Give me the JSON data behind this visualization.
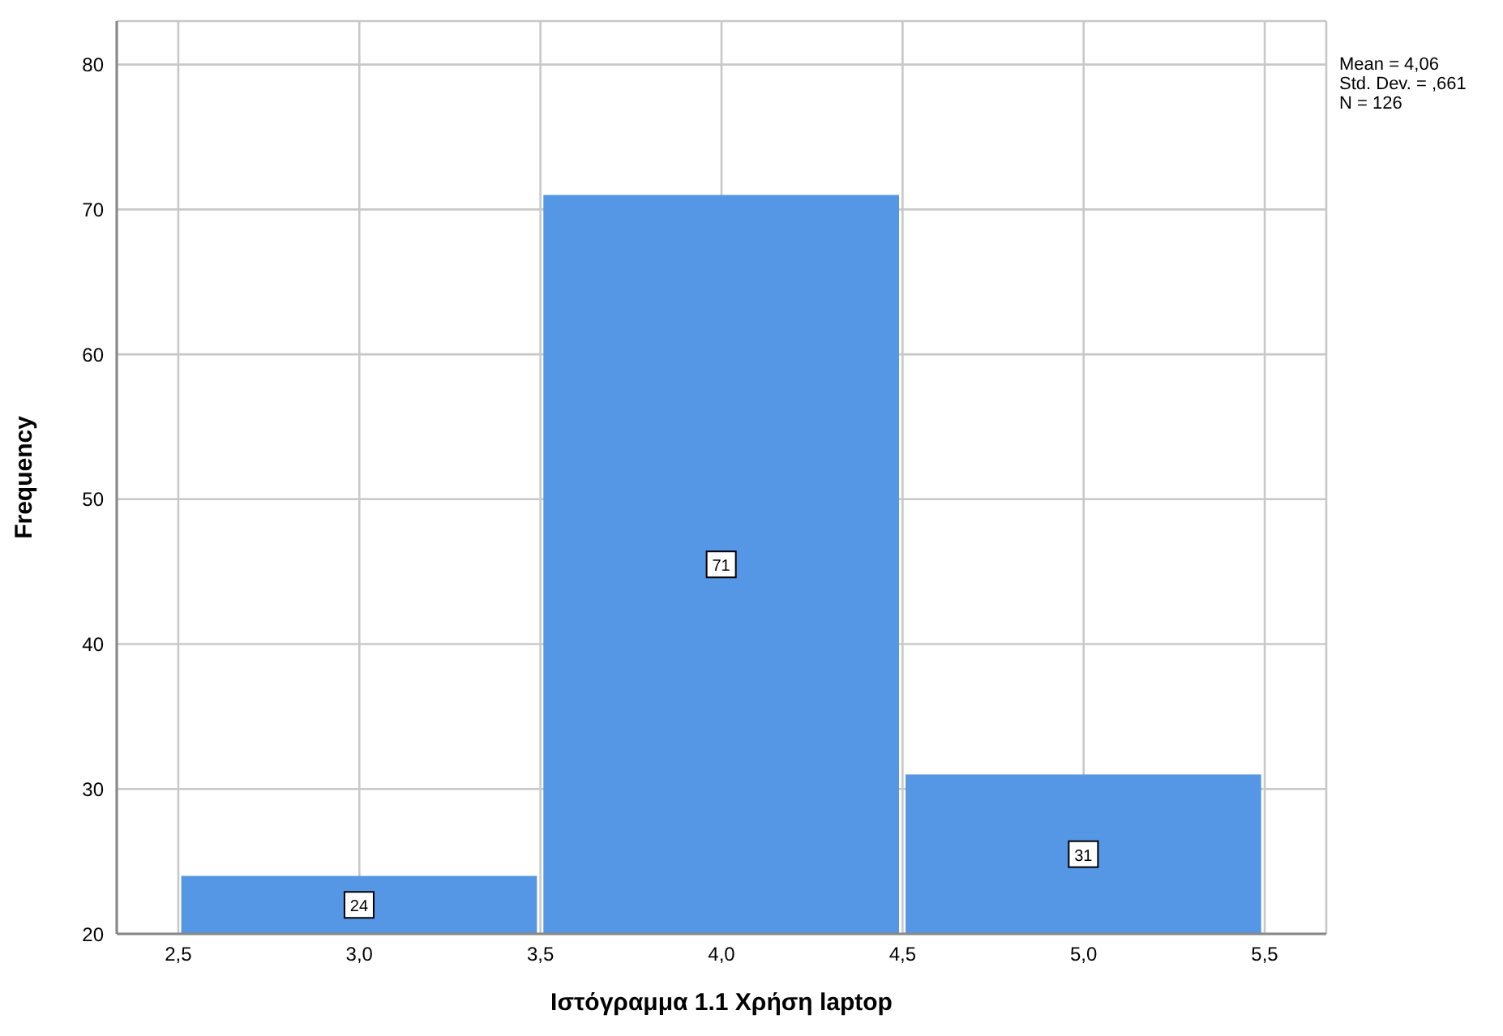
{
  "chart_data": {
    "type": "histogram",
    "xlabel": "Ιστόγραμμα 1.1 Χρήση laptop",
    "ylabel": "Frequency",
    "bins": [
      2.5,
      3.5,
      4.5,
      5.5
    ],
    "values": [
      24,
      71,
      31
    ],
    "color": "#5596e5",
    "data_labels": true,
    "xlim": [
      2.33,
      5.67
    ],
    "xticks": [
      {
        "value": 2.5,
        "label": "2,5"
      },
      {
        "value": 3,
        "label": "3,0"
      },
      {
        "value": 3.5,
        "label": "3,5"
      },
      {
        "value": 4,
        "label": "4,0"
      },
      {
        "value": 4.5,
        "label": "4,5"
      },
      {
        "value": 5,
        "label": "5,0"
      },
      {
        "value": 5.5,
        "label": "5,5"
      }
    ],
    "ylim": [
      20,
      83
    ],
    "yticks": [
      20,
      30,
      40,
      50,
      60,
      70,
      80
    ],
    "grid": true,
    "annotations": [
      "Mean = 4,06",
      "Std. Dev. = ,661",
      "N = 126"
    ]
  }
}
